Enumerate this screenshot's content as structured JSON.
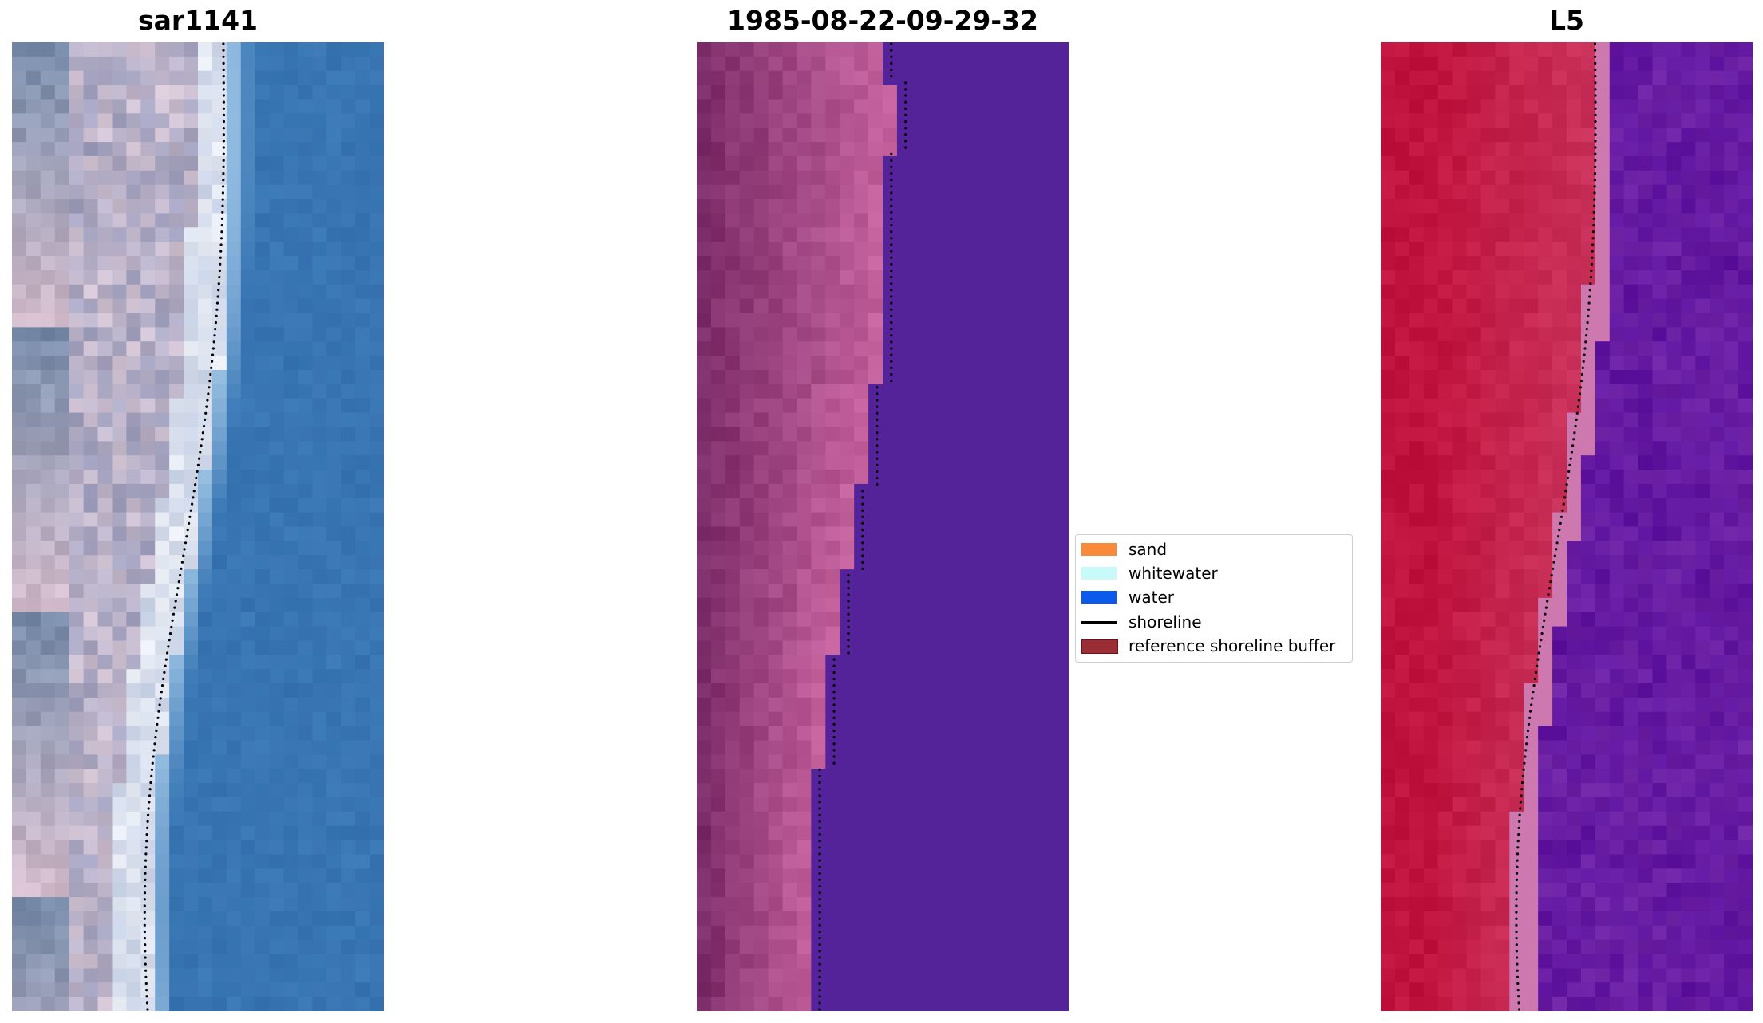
{
  "panels": [
    {
      "title": "sar1141",
      "palette": "rgb"
    },
    {
      "title": "1985-08-22-09-29-32",
      "palette": "class"
    },
    {
      "title": "L5",
      "palette": "index"
    }
  ],
  "legend": {
    "items": [
      {
        "label": "sand",
        "kind": "patch",
        "color": "#f98a3c"
      },
      {
        "label": "whitewater",
        "kind": "patch",
        "color": "#c9fafa"
      },
      {
        "label": "water",
        "kind": "patch",
        "color": "#0b5aec"
      },
      {
        "label": "shoreline",
        "kind": "line",
        "color": "#000000"
      },
      {
        "label": "reference shoreline buffer",
        "kind": "patch",
        "color": "#9b2e35",
        "edge": "#6b1218"
      }
    ]
  },
  "colors": {
    "water_blue": "#3a78b5",
    "class_water": "#54239a",
    "index_red": "#c0143e",
    "index_purple": "#6a1ea0",
    "sand_pink": "#a8497a"
  }
}
